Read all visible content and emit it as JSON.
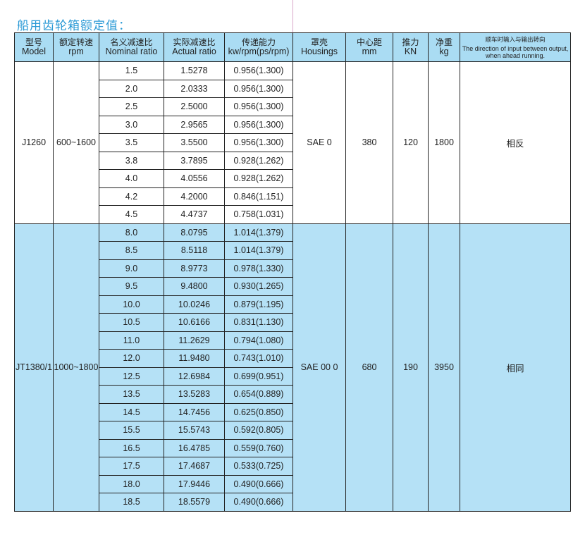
{
  "title": "船用齿轮箱额定值：",
  "colors": {
    "title": "#2b9ad6",
    "header_bg": "#aadcf3",
    "group2_bg": "#b5e1f6"
  },
  "headers": [
    {
      "cn": "型号",
      "en": "Model"
    },
    {
      "cn": "额定转速",
      "en": "rpm"
    },
    {
      "cn": "名义减速比",
      "en": "Nominal ratio"
    },
    {
      "cn": "实际减速比",
      "en": "Actual ratio"
    },
    {
      "cn": "传递能力",
      "en": "kw/rpm(ps/rpm)"
    },
    {
      "cn": "罩壳",
      "en": "Housings"
    },
    {
      "cn": "中心距",
      "en": "mm"
    },
    {
      "cn": "推力",
      "en": "KN"
    },
    {
      "cn": "净重",
      "en": "kg"
    },
    {
      "cn": "顺车时输入与输出转向",
      "en": "The direction of input between output, when ahead running."
    }
  ],
  "groups": [
    {
      "model": "J1260",
      "rpm": "600~1600",
      "housing": "SAE 0",
      "center": "380",
      "thrust": "120",
      "weight": "1800",
      "direction": "相反",
      "rows": [
        [
          "1.5",
          "1.5278",
          "0.956(1.300)"
        ],
        [
          "2.0",
          "2.0333",
          "0.956(1.300)"
        ],
        [
          "2.5",
          "2.5000",
          "0.956(1.300)"
        ],
        [
          "3.0",
          "2.9565",
          "0.956(1.300)"
        ],
        [
          "3.5",
          "3.5500",
          "0.956(1.300)"
        ],
        [
          "3.8",
          "3.7895",
          "0.928(1.262)"
        ],
        [
          "4.0",
          "4.0556",
          "0.928(1.262)"
        ],
        [
          "4.2",
          "4.2000",
          "0.846(1.151)"
        ],
        [
          "4.5",
          "4.4737",
          "0.758(1.031)"
        ]
      ]
    },
    {
      "model": "JT1380/1",
      "rpm": "1000~1800",
      "housing": "SAE 00 0",
      "center": "680",
      "thrust": "190",
      "weight": "3950",
      "direction": "相同",
      "rows": [
        [
          "8.0",
          "8.0795",
          "1.014(1.379)"
        ],
        [
          "8.5",
          "8.5118",
          "1.014(1.379)"
        ],
        [
          "9.0",
          "8.9773",
          "0.978(1.330)"
        ],
        [
          "9.5",
          "9.4800",
          "0.930(1.265)"
        ],
        [
          "10.0",
          "10.0246",
          "0.879(1.195)"
        ],
        [
          "10.5",
          "10.6166",
          "0.831(1.130)"
        ],
        [
          "11.0",
          "11.2629",
          "0.794(1.080)"
        ],
        [
          "12.0",
          "11.9480",
          "0.743(1.010)"
        ],
        [
          "12.5",
          "12.6984",
          "0.699(0.951)"
        ],
        [
          "13.5",
          "13.5283",
          "0.654(0.889)"
        ],
        [
          "14.5",
          "14.7456",
          "0.625(0.850)"
        ],
        [
          "15.5",
          "15.5743",
          "0.592(0.805)"
        ],
        [
          "16.5",
          "16.4785",
          "0.559(0.760)"
        ],
        [
          "17.5",
          "17.4687",
          "0.533(0.725)"
        ],
        [
          "18.0",
          "17.9446",
          "0.490(0.666)"
        ],
        [
          "18.5",
          "18.5579",
          "0.490(0.666)"
        ]
      ]
    }
  ]
}
